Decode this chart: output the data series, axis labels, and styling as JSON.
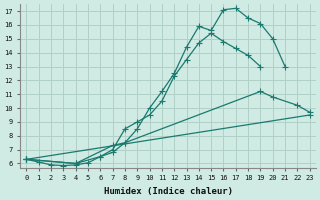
{
  "bg_color": "#d0eae4",
  "grid_color": "#b0d0c8",
  "line_color": "#1a7a6e",
  "xlabel": "Humidex (Indice chaleur)",
  "xlim": [
    -0.5,
    23.5
  ],
  "ylim": [
    5.7,
    17.5
  ],
  "xticks": [
    0,
    1,
    2,
    3,
    4,
    5,
    6,
    7,
    8,
    9,
    10,
    11,
    12,
    13,
    14,
    15,
    16,
    17,
    18,
    19,
    20,
    21,
    22,
    23
  ],
  "yticks": [
    6,
    7,
    8,
    9,
    10,
    11,
    12,
    13,
    14,
    15,
    16,
    17
  ],
  "curve1": {
    "x": [
      0,
      1,
      2,
      3,
      4,
      5,
      6,
      7,
      8,
      9,
      10,
      11,
      12,
      13,
      14,
      15,
      16,
      17,
      18,
      19,
      20,
      21
    ],
    "y": [
      6.3,
      6.1,
      5.9,
      5.85,
      5.9,
      6.05,
      6.5,
      6.8,
      7.5,
      8.5,
      10.0,
      11.2,
      12.5,
      14.4,
      15.9,
      15.6,
      17.1,
      17.2,
      16.5,
      16.1,
      15.0,
      13.0
    ]
  },
  "curve2": {
    "x": [
      0,
      4,
      6,
      7,
      8,
      9,
      10,
      11,
      12,
      13,
      14,
      15,
      16,
      17,
      18,
      19,
      20,
      21,
      22,
      23
    ],
    "y": [
      6.3,
      6.0,
      6.5,
      7.0,
      8.5,
      9.0,
      9.5,
      10.5,
      12.3,
      13.5,
      14.7,
      15.4,
      14.8,
      14.3,
      13.8,
      13.0,
      null,
      null,
      null,
      null
    ]
  },
  "curve3": {
    "x": [
      0,
      4,
      7,
      8,
      19,
      20,
      22,
      23
    ],
    "y": [
      6.3,
      6.0,
      7.3,
      7.5,
      11.2,
      10.8,
      10.2,
      9.7
    ]
  },
  "curve4": {
    "x": [
      0,
      23
    ],
    "y": [
      6.3,
      9.5
    ]
  }
}
